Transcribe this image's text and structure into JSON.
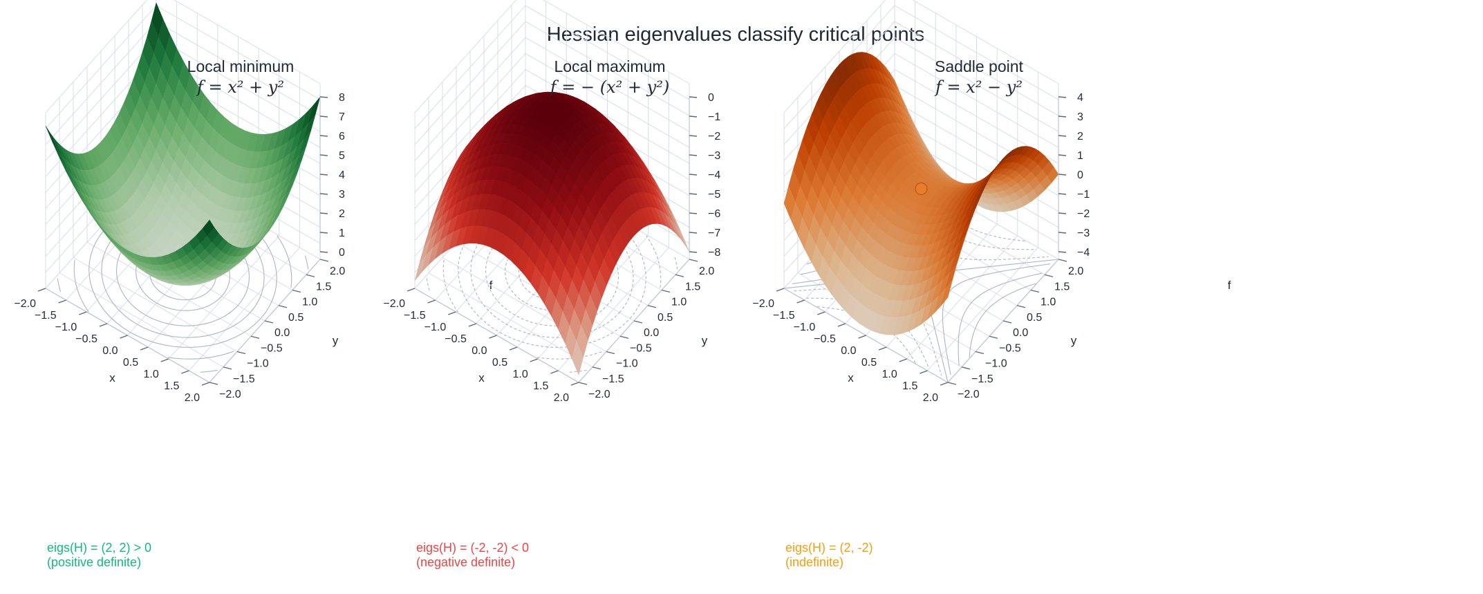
{
  "figure": {
    "title": "Hessian eigenvalues classify critical points"
  },
  "chart_data": [
    {
      "type": "surface",
      "title": "Local minimum",
      "formula": "f = x² + y²",
      "function": "x^2 + y^2",
      "xlabel": "x",
      "ylabel": "y",
      "zlabel": "f",
      "xlim": [
        -2,
        2
      ],
      "ylim": [
        -2,
        2
      ],
      "zlim": [
        0,
        8
      ],
      "x_ticks": [
        "−2.0",
        "−1.5",
        "−1.0",
        "−0.5",
        "0.0",
        "0.5",
        "1.0",
        "1.5",
        "2.0"
      ],
      "y_ticks": [
        "−2.0",
        "−1.5",
        "−1.0",
        "−0.5",
        "0.0",
        "0.5",
        "1.0",
        "1.5",
        "2.0"
      ],
      "z_ticks": [
        "0",
        "1",
        "2",
        "3",
        "4",
        "5",
        "6",
        "7",
        "8"
      ],
      "colorscale": [
        "#f7fcf5",
        "#c7e9c0",
        "#74c476",
        "#238b45",
        "#00441b"
      ],
      "contour_levels": [
        0.5,
        1,
        2,
        3,
        4
      ],
      "hessian_eigenvalues": [
        2,
        2
      ],
      "annotation": [
        "eigs(H) = (2, 2) > 0",
        "(positive definite)"
      ],
      "annotation_color": "#10b981",
      "critical_point": null
    },
    {
      "type": "surface",
      "title": "Local maximum",
      "formula": "f = − (x² + y²)",
      "function": "-(x^2 + y^2)",
      "xlabel": "x",
      "ylabel": "y",
      "zlabel": "f",
      "xlim": [
        -2,
        2
      ],
      "ylim": [
        -2,
        2
      ],
      "zlim": [
        -8,
        0
      ],
      "x_ticks": [
        "−2.0",
        "−1.5",
        "−1.0",
        "−0.5",
        "0.0",
        "0.5",
        "1.0",
        "1.5",
        "2.0"
      ],
      "y_ticks": [
        "−2.0",
        "−1.5",
        "−1.0",
        "−0.5",
        "0.0",
        "0.5",
        "1.0",
        "1.5",
        "2.0"
      ],
      "z_ticks": [
        "−8",
        "−7",
        "−6",
        "−5",
        "−4",
        "−3",
        "−2",
        "−1",
        "0"
      ],
      "colorscale": [
        "#fff5f0",
        "#fcbba1",
        "#ef3b2c",
        "#a50f15",
        "#67000d"
      ],
      "contour_levels": [
        0.5,
        1,
        2,
        3,
        4
      ],
      "hessian_eigenvalues": [
        -2,
        -2
      ],
      "annotation": [
        "eigs(H) = (-2, -2) < 0",
        "(negative definite)"
      ],
      "annotation_color": "#ef4444",
      "critical_point": null
    },
    {
      "type": "surface",
      "title": "Saddle point",
      "formula": "f = x² − y²",
      "function": "x^2 - y^2",
      "xlabel": "x",
      "ylabel": "y",
      "zlabel": "f",
      "xlim": [
        -2,
        2
      ],
      "ylim": [
        -2,
        2
      ],
      "zlim": [
        -4,
        4
      ],
      "x_ticks": [
        "−2.0",
        "−1.5",
        "−1.0",
        "−0.5",
        "0.0",
        "0.5",
        "1.0",
        "1.5",
        "2.0"
      ],
      "y_ticks": [
        "−2.0",
        "−1.5",
        "−1.0",
        "−0.5",
        "0.0",
        "0.5",
        "1.0",
        "1.5",
        "2.0"
      ],
      "z_ticks": [
        "−4",
        "−3",
        "−2",
        "−1",
        "0",
        "1",
        "2",
        "3",
        "4"
      ],
      "colorscale": [
        "#fff5eb",
        "#fdd0a2",
        "#fd8d3c",
        "#d94801",
        "#7f2704"
      ],
      "contour_levels": [
        0.5,
        1,
        2,
        3
      ],
      "hessian_eigenvalues": [
        2,
        -2
      ],
      "annotation": [
        "eigs(H) = (2, -2)",
        "(indefinite)"
      ],
      "annotation_color": "#f59e0b",
      "critical_point": [
        0,
        0,
        0
      ]
    }
  ]
}
